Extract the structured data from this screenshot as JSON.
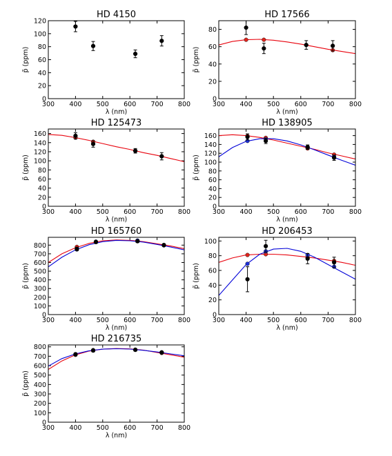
{
  "chart_data": [
    {
      "type": "scatter",
      "title": "HD   4150",
      "xlabel": "λ (nm)",
      "ylabel": "p̃ (ppm)",
      "xlim": [
        300,
        800
      ],
      "ylim": [
        0,
        120
      ],
      "xticks": [
        300,
        400,
        500,
        600,
        700,
        800
      ],
      "yticks": [
        0,
        20,
        40,
        60,
        80,
        100,
        120
      ],
      "observed": {
        "x": [
          400,
          465,
          620,
          717
        ],
        "y": [
          111,
          81,
          69,
          89
        ],
        "err": [
          8,
          7,
          6,
          8
        ]
      },
      "model_points": [],
      "curves": []
    },
    {
      "type": "scatter",
      "title": "HD  17566",
      "xlabel": "λ (nm)",
      "ylabel": "p̃ (ppm)",
      "xlim": [
        300,
        800
      ],
      "ylim": [
        0,
        90
      ],
      "xticks": [
        300,
        400,
        500,
        600,
        700,
        800
      ],
      "yticks": [
        0,
        20,
        40,
        60,
        80
      ],
      "observed": {
        "x": [
          400,
          465,
          620,
          717
        ],
        "y": [
          82,
          58,
          62,
          61
        ],
        "err": [
          8,
          6,
          5,
          6
        ]
      },
      "model_points": [
        {
          "color": "#e0241b",
          "x": [
            400,
            465,
            620,
            717
          ],
          "y": [
            68,
            68,
            62,
            56
          ]
        }
      ],
      "curves": [
        {
          "color": "#e8000b",
          "x": [
            300,
            350,
            400,
            450,
            500,
            550,
            600,
            650,
            700,
            750,
            800
          ],
          "y": [
            62,
            66,
            68,
            68.5,
            67.5,
            65.5,
            63,
            60,
            57,
            54.5,
            52
          ]
        }
      ]
    },
    {
      "type": "scatter",
      "title": "HD 125473",
      "xlabel": "λ (nm)",
      "ylabel": "p̃ (ppm)",
      "xlim": [
        300,
        800
      ],
      "ylim": [
        0,
        170
      ],
      "xticks": [
        300,
        400,
        500,
        600,
        700,
        800
      ],
      "yticks": [
        0,
        20,
        40,
        60,
        80,
        100,
        120,
        140,
        160
      ],
      "observed": {
        "x": [
          400,
          465,
          620,
          717
        ],
        "y": [
          155,
          137,
          122,
          110
        ],
        "err": [
          7,
          7,
          5,
          8
        ]
      },
      "model_points": [
        {
          "color": "#e0241b",
          "x": [
            400,
            465,
            620,
            717
          ],
          "y": [
            151,
            142,
            122,
            110
          ]
        }
      ],
      "curves": [
        {
          "color": "#e8000b",
          "x": [
            300,
            350,
            400,
            450,
            500,
            550,
            600,
            650,
            700,
            750,
            800
          ],
          "y": [
            158,
            156,
            151,
            145,
            138,
            131,
            125,
            118,
            112,
            105,
            98
          ]
        }
      ]
    },
    {
      "type": "scatter",
      "title": "HD 138905",
      "xlabel": "λ (nm)",
      "ylabel": "p̃ (ppm)",
      "xlim": [
        300,
        800
      ],
      "ylim": [
        0,
        175
      ],
      "xticks": [
        300,
        400,
        500,
        600,
        700,
        800
      ],
      "yticks": [
        0,
        20,
        40,
        60,
        80,
        100,
        120,
        140,
        160
      ],
      "observed": {
        "x": [
          405,
          472,
          625,
          722
        ],
        "y": [
          157,
          148,
          134,
          110
        ],
        "err": [
          7,
          6,
          5,
          6
        ]
      },
      "model_points": [
        {
          "color": "#e0241b",
          "x": [
            405,
            472,
            625,
            722
          ],
          "y": [
            159,
            155,
            131,
            117
          ]
        },
        {
          "color": "#1d30d8",
          "x": [
            405,
            472,
            625,
            722
          ],
          "y": [
            148,
            152,
            134,
            112
          ]
        }
      ],
      "curves": [
        {
          "color": "#e8000b",
          "x": [
            300,
            350,
            400,
            450,
            500,
            550,
            600,
            650,
            700,
            750,
            800
          ],
          "y": [
            160,
            162,
            160,
            156,
            150,
            143,
            136,
            129,
            121,
            114,
            107
          ]
        },
        {
          "color": "#0000d8",
          "x": [
            300,
            350,
            400,
            450,
            500,
            550,
            600,
            650,
            700,
            750,
            800
          ],
          "y": [
            112,
            133,
            147,
            153,
            153,
            148,
            139,
            128,
            116,
            104,
            93
          ]
        }
      ]
    },
    {
      "type": "scatter",
      "title": "HD 165760",
      "xlabel": "λ (nm)",
      "ylabel": "p̃ (ppm)",
      "xlim": [
        300,
        800
      ],
      "ylim": [
        0,
        890
      ],
      "xticks": [
        300,
        400,
        500,
        600,
        700,
        800
      ],
      "yticks": [
        0,
        100,
        200,
        300,
        400,
        500,
        600,
        700,
        800
      ],
      "observed": {
        "x": [
          405,
          475,
          628,
          725
        ],
        "y": [
          757,
          835,
          845,
          800
        ],
        "err": [
          20,
          15,
          15,
          15
        ]
      },
      "model_points": [
        {
          "color": "#e0241b",
          "x": [
            405,
            475,
            628,
            725
          ],
          "y": [
            780,
            840,
            850,
            802
          ]
        },
        {
          "color": "#1d30d8",
          "x": [
            405,
            475,
            628,
            725
          ],
          "y": [
            750,
            840,
            853,
            797
          ]
        }
      ],
      "curves": [
        {
          "color": "#e8000b",
          "x": [
            300,
            350,
            400,
            450,
            500,
            550,
            600,
            650,
            700,
            750,
            800
          ],
          "y": [
            600,
            700,
            770,
            820,
            850,
            860,
            855,
            840,
            815,
            790,
            760
          ]
        },
        {
          "color": "#0000d8",
          "x": [
            300,
            350,
            400,
            450,
            500,
            550,
            600,
            650,
            700,
            750,
            800
          ],
          "y": [
            550,
            660,
            745,
            805,
            840,
            855,
            850,
            835,
            808,
            778,
            745
          ]
        }
      ]
    },
    {
      "type": "scatter",
      "title": "HD 206453",
      "xlabel": "λ (nm)",
      "ylabel": "p̃ (ppm)",
      "xlim": [
        300,
        800
      ],
      "ylim": [
        0,
        105
      ],
      "xticks": [
        300,
        400,
        500,
        600,
        700,
        800
      ],
      "yticks": [
        0,
        20,
        40,
        60,
        80,
        100
      ],
      "observed": {
        "x": [
          405,
          472,
          625,
          722
        ],
        "y": [
          48,
          93,
          76,
          71
        ],
        "err": [
          17,
          8,
          7,
          7
        ]
      },
      "model_points": [
        {
          "color": "#e0241b",
          "x": [
            405,
            472,
            625,
            722
          ],
          "y": [
            81,
            82,
            78,
            73
          ]
        },
        {
          "color": "#1d30d8",
          "x": [
            405,
            472,
            625,
            722
          ],
          "y": [
            69,
            86,
            81,
            65
          ]
        }
      ],
      "curves": [
        {
          "color": "#e8000b",
          "x": [
            300,
            350,
            400,
            450,
            500,
            550,
            600,
            650,
            700,
            750,
            800
          ],
          "y": [
            71,
            77,
            81,
            82,
            82,
            81,
            79,
            77,
            74,
            71,
            67
          ]
        },
        {
          "color": "#0000d8",
          "x": [
            300,
            350,
            400,
            450,
            500,
            550,
            600,
            650,
            700,
            750,
            800
          ],
          "y": [
            26,
            47,
            68,
            82,
            89,
            90,
            86,
            78,
            68,
            58,
            48
          ]
        }
      ]
    },
    {
      "type": "scatter",
      "title": "HD 216735",
      "xlabel": "λ (nm)",
      "ylabel": "p̃ (ppm)",
      "xlim": [
        300,
        800
      ],
      "ylim": [
        0,
        820
      ],
      "xticks": [
        300,
        400,
        500,
        600,
        700,
        800
      ],
      "yticks": [
        0,
        100,
        200,
        300,
        400,
        500,
        600,
        700,
        800
      ],
      "observed": {
        "x": [
          400,
          465,
          620,
          717
        ],
        "y": [
          720,
          760,
          768,
          740
        ],
        "err": [
          15,
          12,
          12,
          12
        ]
      },
      "model_points": [
        {
          "color": "#e0241b",
          "x": [
            400,
            465,
            620,
            717
          ],
          "y": [
            715,
            765,
            770,
            735
          ]
        },
        {
          "color": "#1d30d8",
          "x": [
            400,
            465,
            620,
            717
          ],
          "y": [
            722,
            762,
            768,
            742
          ]
        }
      ],
      "curves": [
        {
          "color": "#e8000b",
          "x": [
            300,
            350,
            400,
            450,
            500,
            550,
            600,
            650,
            700,
            750,
            800
          ],
          "y": [
            560,
            650,
            715,
            755,
            775,
            782,
            778,
            765,
            740,
            715,
            690
          ]
        },
        {
          "color": "#0000d8",
          "x": [
            300,
            350,
            400,
            450,
            500,
            550,
            600,
            650,
            700,
            750,
            800
          ],
          "y": [
            595,
            675,
            725,
            758,
            775,
            780,
            776,
            763,
            745,
            725,
            705
          ]
        }
      ]
    }
  ]
}
